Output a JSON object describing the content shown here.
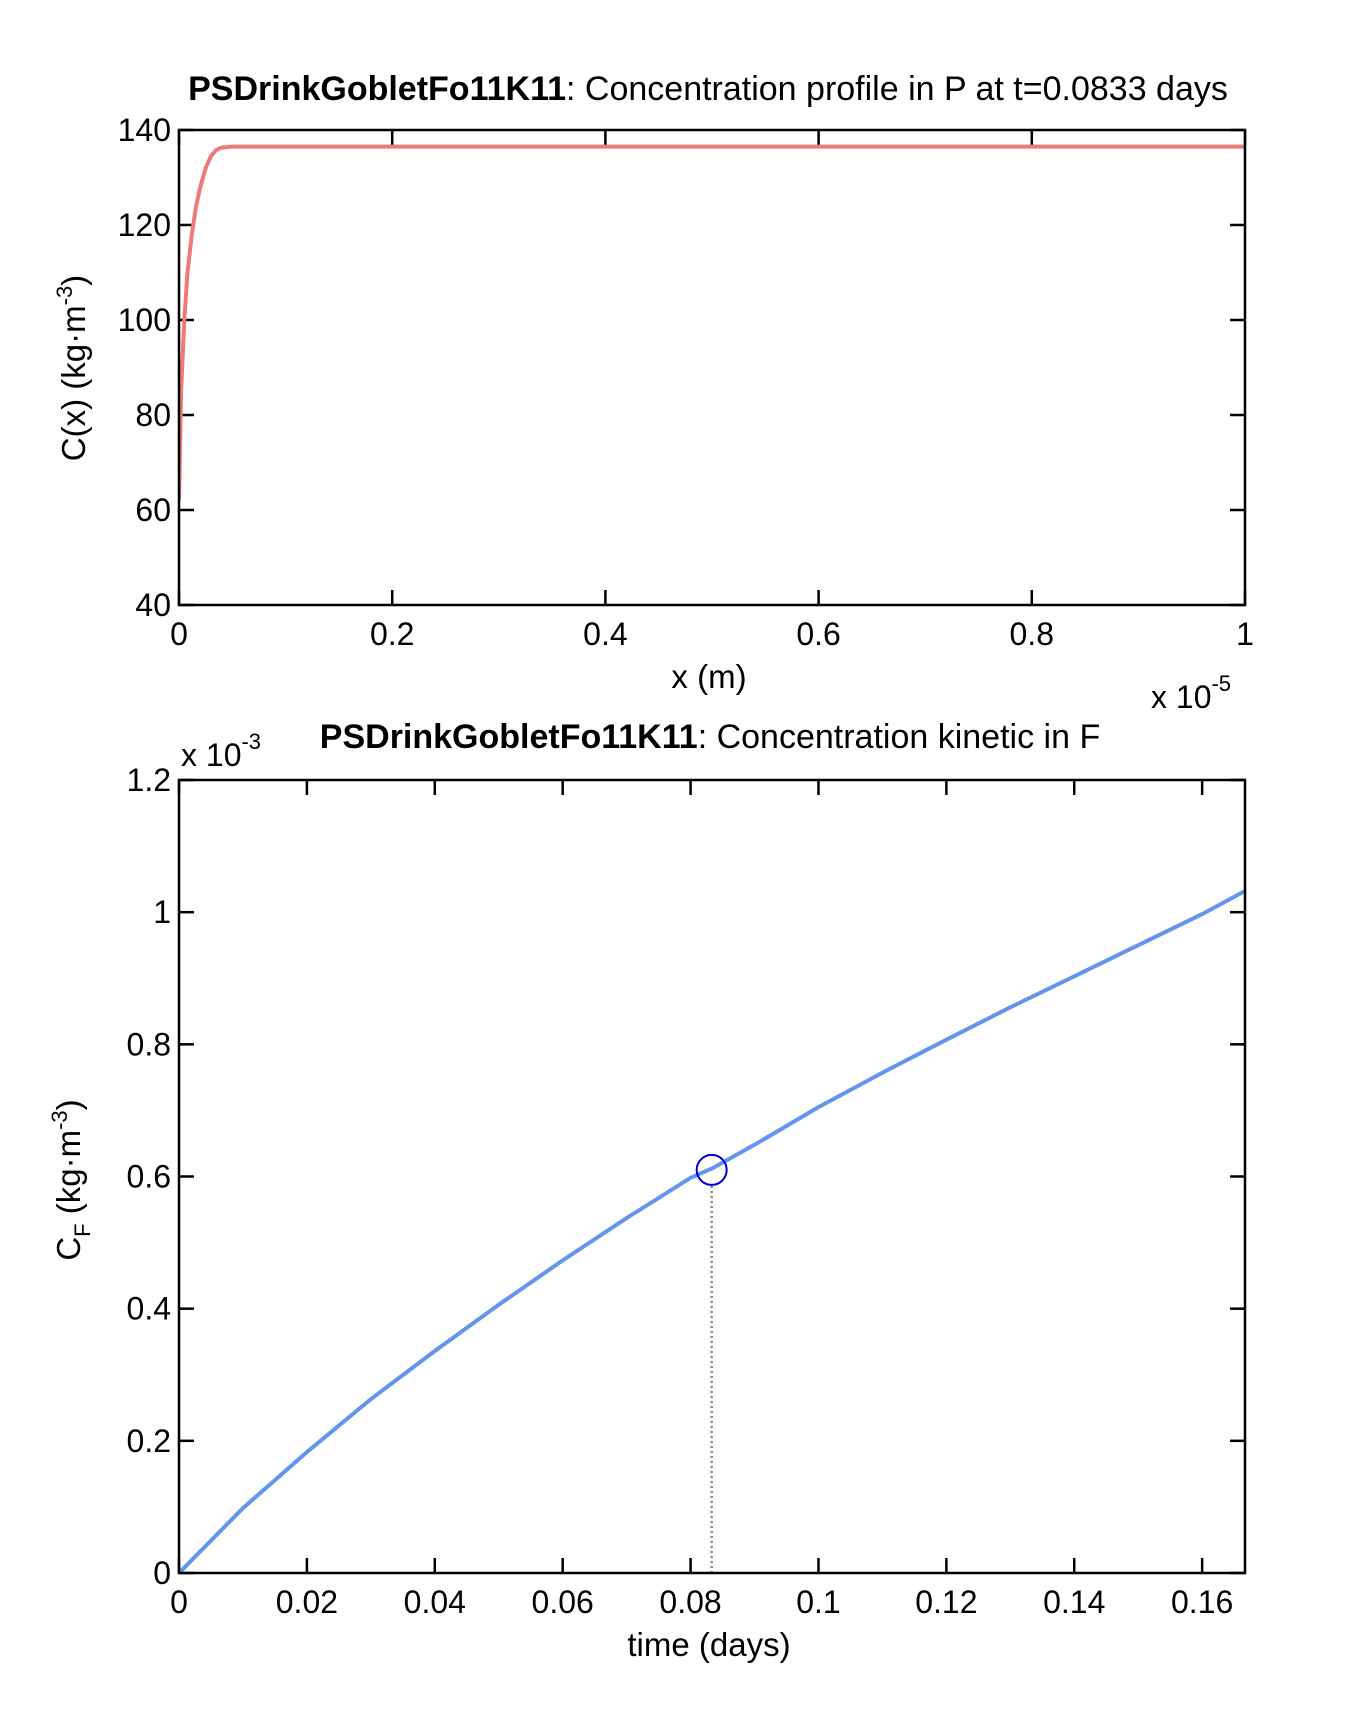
{
  "chart_data": [
    {
      "type": "line",
      "title": {
        "name": "PSDrinkGobletFo11K11",
        "text": ": Concentration profile in P at t=0.0833 days"
      },
      "xlabel": "x (m)",
      "ylabel": {
        "main": "C(x) (kg·m",
        "sup": "-3",
        "close": ")"
      },
      "x_multiplier": {
        "base": "x 10",
        "exp": "-5"
      },
      "xlim": [
        0,
        1
      ],
      "ylim": [
        40,
        140
      ],
      "x_ticks": [
        "0",
        "0.2",
        "0.4",
        "0.6",
        "0.8",
        "1"
      ],
      "x_tick_values": [
        0,
        0.2,
        0.4,
        0.6,
        0.8,
        1
      ],
      "y_ticks": [
        "40",
        "60",
        "80",
        "100",
        "120",
        "140"
      ],
      "y_tick_values": [
        40,
        60,
        80,
        100,
        120,
        140
      ],
      "grid": false,
      "series": [
        {
          "color": "#ef7a7a",
          "x": [
            0,
            0.002,
            0.005,
            0.008,
            0.012,
            0.016,
            0.02,
            0.025,
            0.03,
            0.035,
            0.04,
            0.05,
            0.1,
            0.3,
            0.5,
            0.7,
            1.0
          ],
          "y": [
            62,
            85,
            100,
            110,
            118,
            124,
            128,
            132,
            134.5,
            135.8,
            136.3,
            136.5,
            136.5,
            136.5,
            136.5,
            136.5,
            136.5
          ]
        }
      ]
    },
    {
      "type": "line",
      "title": {
        "name": "PSDrinkGobletFo11K11",
        "text": ": Concentration kinetic in F"
      },
      "xlabel": "time (days)",
      "ylabel": {
        "main": "C",
        "sub": "F",
        "rest": " (kg·m",
        "sup": "-3",
        "close": ")"
      },
      "y_multiplier": {
        "base": "x 10",
        "exp": "-3"
      },
      "xlim": [
        0,
        0.1667
      ],
      "ylim": [
        0,
        1.2
      ],
      "x_ticks": [
        "0",
        "0.02",
        "0.04",
        "0.06",
        "0.08",
        "0.1",
        "0.12",
        "0.14",
        "0.16"
      ],
      "x_tick_values": [
        0,
        0.02,
        0.04,
        0.06,
        0.08,
        0.1,
        0.12,
        0.14,
        0.16
      ],
      "y_ticks": [
        "0",
        "0.2",
        "0.4",
        "0.6",
        "0.8",
        "1",
        "1.2"
      ],
      "y_tick_values": [
        0,
        0.2,
        0.4,
        0.6,
        0.8,
        1.0,
        1.2
      ],
      "grid": false,
      "series": [
        {
          "color": "#6495ed",
          "x": [
            0,
            0.01,
            0.02,
            0.03,
            0.04,
            0.05,
            0.06,
            0.07,
            0.08,
            0.0833,
            0.09,
            0.1,
            0.11,
            0.12,
            0.13,
            0.14,
            0.15,
            0.16,
            0.1667
          ],
          "y": [
            0,
            0.098,
            0.183,
            0.263,
            0.336,
            0.406,
            0.473,
            0.537,
            0.598,
            0.612,
            0.648,
            0.705,
            0.757,
            0.807,
            0.856,
            0.903,
            0.95,
            0.997,
            1.032
          ]
        }
      ],
      "marker": {
        "x": 0.0833,
        "y": 0.61,
        "color": "#0000dd",
        "shape": "circle"
      },
      "reference_line": {
        "x": 0.0833,
        "from_y": 0,
        "to_y": 0.61,
        "style": "dotted",
        "color": "#888888"
      }
    }
  ]
}
